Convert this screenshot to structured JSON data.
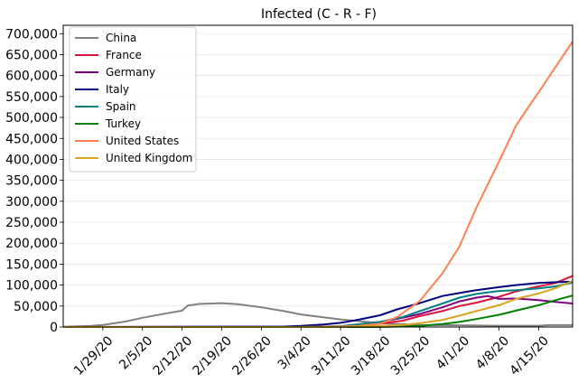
{
  "chart_data": {
    "type": "line",
    "title": "Infected (C - R - F)",
    "xlabel": "",
    "ylabel": "",
    "x_start": "2020-01-22",
    "x_end": "2020-04-21",
    "x_ticks": [
      "1/29/20",
      "2/5/20",
      "2/12/20",
      "2/19/20",
      "2/26/20",
      "3/4/20",
      "3/11/20",
      "3/18/20",
      "3/25/20",
      "4/1/20",
      "4/8/20",
      "4/15/20"
    ],
    "y_ticks": [
      "0",
      "50,000",
      "100,000",
      "150,000",
      "200,000",
      "250,000",
      "300,000",
      "350,000",
      "400,000",
      "450,000",
      "500,000",
      "550,000",
      "600,000",
      "650,000",
      "700,000"
    ],
    "ylim": [
      0,
      720000
    ],
    "grid": "horizontal",
    "legend_position": "top-left",
    "series": [
      {
        "name": "China",
        "color": "#808080",
        "points": [
          [
            "1/22/20",
            500
          ],
          [
            "1/27/20",
            2500
          ],
          [
            "1/29/20",
            5000
          ],
          [
            "2/2/20",
            13000
          ],
          [
            "2/5/20",
            22000
          ],
          [
            "2/9/20",
            32000
          ],
          [
            "2/12/20",
            39000
          ],
          [
            "2/13/20",
            51000
          ],
          [
            "2/15/20",
            55000
          ],
          [
            "2/19/20",
            57000
          ],
          [
            "2/22/20",
            54000
          ],
          [
            "2/26/20",
            47000
          ],
          [
            "3/1/20",
            38000
          ],
          [
            "3/4/20",
            30000
          ],
          [
            "3/11/20",
            18000
          ],
          [
            "3/18/20",
            9000
          ],
          [
            "3/25/20",
            5000
          ],
          [
            "4/1/20",
            4000
          ],
          [
            "4/8/20",
            3000
          ],
          [
            "4/15/20",
            3000
          ],
          [
            "4/17/20",
            4500
          ],
          [
            "4/21/20",
            4500
          ]
        ]
      },
      {
        "name": "France",
        "color": "#dc143c",
        "points": [
          [
            "1/22/20",
            0
          ],
          [
            "3/4/20",
            200
          ],
          [
            "3/11/20",
            1500
          ],
          [
            "3/18/20",
            8000
          ],
          [
            "3/22/20",
            15000
          ],
          [
            "3/25/20",
            26000
          ],
          [
            "3/29/20",
            38000
          ],
          [
            "4/1/20",
            50000
          ],
          [
            "4/4/20",
            58000
          ],
          [
            "4/8/20",
            72000
          ],
          [
            "4/11/20",
            85000
          ],
          [
            "4/15/20",
            97000
          ],
          [
            "4/18/20",
            105000
          ],
          [
            "4/21/20",
            122000
          ]
        ]
      },
      {
        "name": "Germany",
        "color": "#800080",
        "points": [
          [
            "1/22/20",
            0
          ],
          [
            "3/4/20",
            300
          ],
          [
            "3/11/20",
            1700
          ],
          [
            "3/18/20",
            12000
          ],
          [
            "3/22/20",
            22000
          ],
          [
            "3/25/20",
            31000
          ],
          [
            "3/29/20",
            47000
          ],
          [
            "4/1/20",
            61000
          ],
          [
            "4/4/20",
            70000
          ],
          [
            "4/6/20",
            74000
          ],
          [
            "4/8/20",
            67000
          ],
          [
            "4/11/20",
            68000
          ],
          [
            "4/15/20",
            64000
          ],
          [
            "4/18/20",
            60000
          ],
          [
            "4/21/20",
            56000
          ]
        ]
      },
      {
        "name": "Italy",
        "color": "#000080",
        "points": [
          [
            "1/22/20",
            0
          ],
          [
            "3/1/20",
            1000
          ],
          [
            "3/4/20",
            2500
          ],
          [
            "3/8/20",
            6000
          ],
          [
            "3/11/20",
            10000
          ],
          [
            "3/14/20",
            17000
          ],
          [
            "3/18/20",
            28000
          ],
          [
            "3/21/20",
            42000
          ],
          [
            "3/25/20",
            57000
          ],
          [
            "3/29/20",
            74000
          ],
          [
            "4/1/20",
            81000
          ],
          [
            "4/4/20",
            88000
          ],
          [
            "4/8/20",
            95000
          ],
          [
            "4/11/20",
            100000
          ],
          [
            "4/15/20",
            105000
          ],
          [
            "4/18/20",
            107000
          ],
          [
            "4/21/20",
            108000
          ]
        ]
      },
      {
        "name": "Spain",
        "color": "#008080",
        "points": [
          [
            "1/22/20",
            0
          ],
          [
            "3/4/20",
            200
          ],
          [
            "3/11/20",
            1800
          ],
          [
            "3/18/20",
            12000
          ],
          [
            "3/22/20",
            24000
          ],
          [
            "3/25/20",
            38000
          ],
          [
            "3/29/20",
            56000
          ],
          [
            "4/1/20",
            70000
          ],
          [
            "4/4/20",
            79000
          ],
          [
            "4/8/20",
            86000
          ],
          [
            "4/11/20",
            88000
          ],
          [
            "4/15/20",
            92000
          ],
          [
            "4/18/20",
            97000
          ],
          [
            "4/21/20",
            106000
          ]
        ]
      },
      {
        "name": "Turkey",
        "color": "#008000",
        "points": [
          [
            "1/22/20",
            0
          ],
          [
            "3/18/20",
            100
          ],
          [
            "3/22/20",
            1200
          ],
          [
            "3/25/20",
            2500
          ],
          [
            "3/29/20",
            7000
          ],
          [
            "4/1/20",
            12000
          ],
          [
            "4/4/20",
            19000
          ],
          [
            "4/8/20",
            29000
          ],
          [
            "4/11/20",
            39000
          ],
          [
            "4/15/20",
            52000
          ],
          [
            "4/18/20",
            64000
          ],
          [
            "4/21/20",
            75000
          ]
        ]
      },
      {
        "name": "United States",
        "color": "#ff7f50",
        "points": [
          [
            "1/22/20",
            0
          ],
          [
            "3/4/20",
            100
          ],
          [
            "3/11/20",
            1000
          ],
          [
            "3/14/20",
            2500
          ],
          [
            "3/18/20",
            8000
          ],
          [
            "3/21/20",
            24000
          ],
          [
            "3/25/20",
            62000
          ],
          [
            "3/29/20",
            128000
          ],
          [
            "4/1/20",
            192000
          ],
          [
            "4/4/20",
            285000
          ],
          [
            "4/8/20",
            395000
          ],
          [
            "4/11/20",
            480000
          ],
          [
            "4/13/20",
            521000
          ],
          [
            "4/15/20",
            560000
          ],
          [
            "4/18/20",
            621000
          ],
          [
            "4/21/20",
            681000
          ]
        ]
      },
      {
        "name": "United Kingdom",
        "color": "#daa520",
        "points": [
          [
            "1/22/20",
            0
          ],
          [
            "3/4/20",
            100
          ],
          [
            "3/11/20",
            400
          ],
          [
            "3/18/20",
            2500
          ],
          [
            "3/22/20",
            5000
          ],
          [
            "3/25/20",
            9000
          ],
          [
            "3/29/20",
            17000
          ],
          [
            "4/1/20",
            27000
          ],
          [
            "4/4/20",
            38000
          ],
          [
            "4/8/20",
            52000
          ],
          [
            "4/11/20",
            67000
          ],
          [
            "4/15/20",
            80000
          ],
          [
            "4/18/20",
            93000
          ],
          [
            "4/21/20",
            110000
          ]
        ]
      }
    ]
  }
}
